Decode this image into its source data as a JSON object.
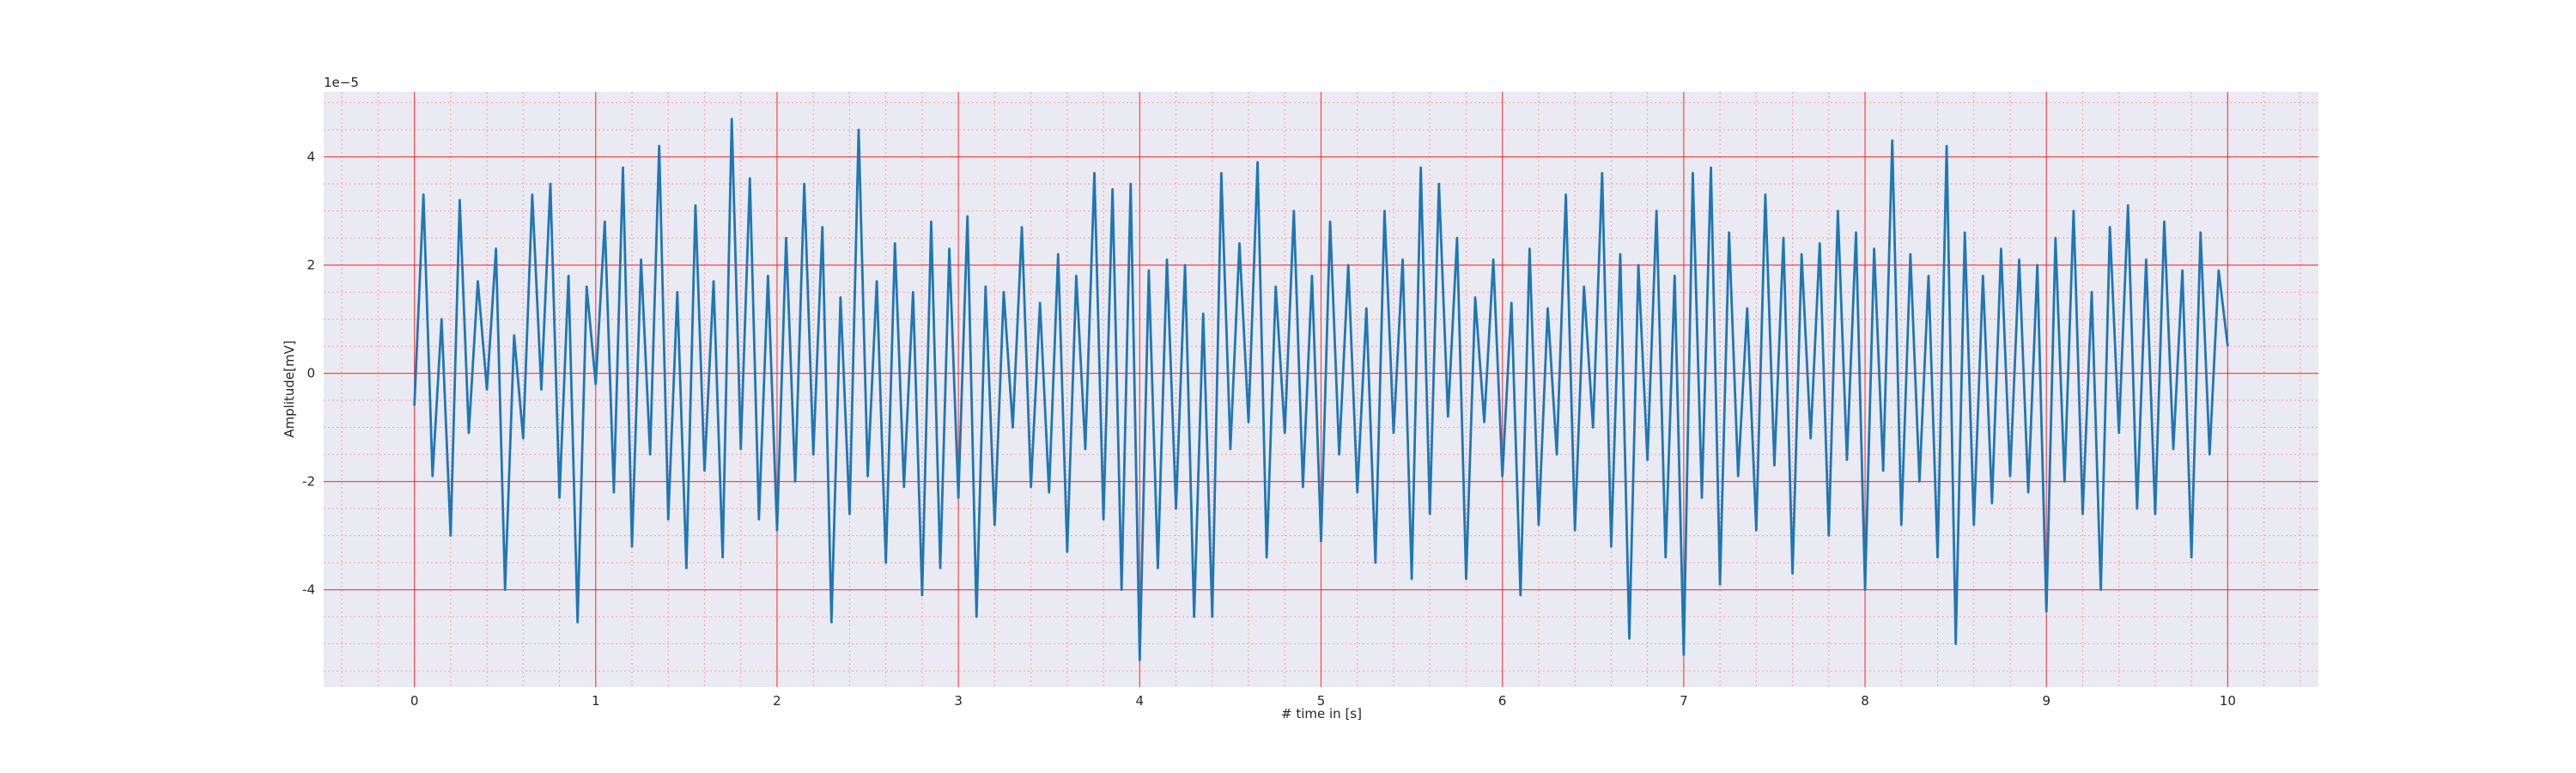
{
  "chart_data": {
    "type": "line",
    "x_label": "# time in [s]",
    "y_label": "Amplitude[mV]",
    "y_offset_text": "1e−5",
    "xlim": [
      -0.5,
      10.5
    ],
    "ylim": [
      -5.8,
      5.2
    ],
    "xticks": [
      0,
      1,
      2,
      3,
      4,
      5,
      6,
      7,
      8,
      9,
      10
    ],
    "yticks": [
      -4,
      -2,
      0,
      2,
      4
    ],
    "xminorticks": [
      -0.4,
      -0.2,
      0.2,
      0.4,
      0.6,
      0.8,
      1.2,
      1.4,
      1.6,
      1.8,
      2.2,
      2.4,
      2.6,
      2.8,
      3.2,
      3.4,
      3.6,
      3.8,
      4.2,
      4.4,
      4.6,
      4.8,
      5.2,
      5.4,
      5.6,
      5.8,
      6.2,
      6.4,
      6.6,
      6.8,
      7.2,
      7.4,
      7.6,
      7.8,
      8.2,
      8.4,
      8.6,
      8.8,
      9.2,
      9.4,
      9.6,
      9.8,
      10.2,
      10.4
    ],
    "yminorticks": [
      -5.5,
      -5,
      -4.5,
      -3.5,
      -3,
      -2.5,
      -1.5,
      -1,
      -0.5,
      0.5,
      1,
      1.5,
      2.5,
      3,
      3.5,
      4.5,
      5
    ],
    "grid": true,
    "grid_color": "#ff0000",
    "minor_grid_color": "#ff9aa8",
    "background": "#eaeaf2",
    "x": [
      0,
      0.05,
      0.1,
      0.15,
      0.2,
      0.25,
      0.3,
      0.35,
      0.4,
      0.45,
      0.5,
      0.55,
      0.6,
      0.65,
      0.7,
      0.75,
      0.8,
      0.85,
      0.9,
      0.95,
      1,
      1.05,
      1.1,
      1.15,
      1.2,
      1.25,
      1.3,
      1.35,
      1.4,
      1.45,
      1.5,
      1.55,
      1.6,
      1.65,
      1.7,
      1.75,
      1.8,
      1.85,
      1.9,
      1.95,
      2,
      2.05,
      2.1,
      2.15,
      2.2,
      2.25,
      2.3,
      2.35,
      2.4,
      2.45,
      2.5,
      2.55,
      2.6,
      2.65,
      2.7,
      2.75,
      2.8,
      2.85,
      2.9,
      2.95,
      3,
      3.05,
      3.1,
      3.15,
      3.2,
      3.25,
      3.3,
      3.35,
      3.4,
      3.45,
      3.5,
      3.55,
      3.6,
      3.65,
      3.7,
      3.75,
      3.8,
      3.85,
      3.9,
      3.95,
      4,
      4.05,
      4.1,
      4.15,
      4.2,
      4.25,
      4.3,
      4.35,
      4.4,
      4.45,
      4.5,
      4.55,
      4.6,
      4.65,
      4.7,
      4.75,
      4.8,
      4.85,
      4.9,
      4.95,
      5,
      5.05,
      5.1,
      5.15,
      5.2,
      5.25,
      5.3,
      5.35,
      5.4,
      5.45,
      5.5,
      5.55,
      5.6,
      5.65,
      5.7,
      5.75,
      5.8,
      5.85,
      5.9,
      5.95,
      6,
      6.05,
      6.1,
      6.15,
      6.2,
      6.25,
      6.3,
      6.35,
      6.4,
      6.45,
      6.5,
      6.55,
      6.6,
      6.65,
      6.7,
      6.75,
      6.8,
      6.85,
      6.9,
      6.95,
      7,
      7.05,
      7.1,
      7.15,
      7.2,
      7.25,
      7.3,
      7.35,
      7.4,
      7.45,
      7.5,
      7.55,
      7.6,
      7.65,
      7.7,
      7.75,
      7.8,
      7.85,
      7.9,
      7.95,
      8,
      8.05,
      8.1,
      8.15,
      8.2,
      8.25,
      8.3,
      8.35,
      8.4,
      8.45,
      8.5,
      8.55,
      8.6,
      8.65,
      8.7,
      8.75,
      8.8,
      8.85,
      8.9,
      8.95,
      9,
      9.05,
      9.1,
      9.15,
      9.2,
      9.25,
      9.3,
      9.35,
      9.4,
      9.45,
      9.5,
      9.55,
      9.6,
      9.65,
      9.7,
      9.75,
      9.8,
      9.85,
      9.9,
      9.95,
      10
    ],
    "series": [
      {
        "color": "#1f77b4",
        "values": [
          -0.6,
          3.3,
          -1.9,
          1.0,
          -3.0,
          3.2,
          -1.1,
          1.7,
          -0.3,
          2.3,
          -4.0,
          0.7,
          -1.2,
          3.3,
          -0.3,
          3.5,
          -2.3,
          1.8,
          -4.6,
          1.6,
          -0.2,
          2.8,
          -2.2,
          3.8,
          -3.2,
          2.1,
          -1.5,
          4.2,
          -2.7,
          1.5,
          -3.6,
          3.1,
          -1.8,
          1.7,
          -3.4,
          4.7,
          -1.4,
          3.6,
          -2.7,
          1.8,
          -2.9,
          2.5,
          -2.0,
          3.5,
          -1.5,
          2.7,
          -4.6,
          1.4,
          -2.6,
          4.5,
          -1.9,
          1.7,
          -3.5,
          2.4,
          -2.1,
          1.5,
          -4.1,
          2.8,
          -3.6,
          2.3,
          -2.3,
          2.9,
          -4.5,
          1.6,
          -2.8,
          1.5,
          -1.0,
          2.7,
          -2.1,
          1.3,
          -2.2,
          2.2,
          -3.3,
          1.8,
          -1.4,
          3.7,
          -2.7,
          3.4,
          -4.0,
          3.5,
          -5.3,
          1.9,
          -3.6,
          2.1,
          -2.5,
          2.0,
          -4.5,
          1.1,
          -4.5,
          3.7,
          -1.4,
          2.4,
          -0.9,
          3.9,
          -3.4,
          1.6,
          -1.1,
          3.0,
          -2.1,
          1.8,
          -3.1,
          2.8,
          -1.5,
          2.0,
          -2.2,
          1.2,
          -3.5,
          3.0,
          -1.1,
          2.1,
          -3.8,
          3.8,
          -2.6,
          3.5,
          -0.8,
          2.5,
          -3.8,
          1.4,
          -0.9,
          2.1,
          -1.9,
          1.3,
          -4.1,
          2.3,
          -2.8,
          1.2,
          -1.5,
          3.3,
          -2.9,
          1.6,
          -1.0,
          3.7,
          -3.2,
          2.2,
          -4.9,
          2.0,
          -1.6,
          3.0,
          -3.4,
          1.8,
          -5.2,
          3.7,
          -2.3,
          3.8,
          -3.9,
          2.6,
          -1.9,
          1.2,
          -2.9,
          3.3,
          -1.7,
          2.5,
          -3.7,
          2.2,
          -1.2,
          2.4,
          -3.0,
          3.0,
          -1.6,
          2.6,
          -4.0,
          2.3,
          -1.8,
          4.3,
          -2.8,
          2.2,
          -2.0,
          1.8,
          -3.4,
          4.2,
          -5.0,
          2.6,
          -2.8,
          1.8,
          -2.4,
          2.3,
          -1.9,
          2.1,
          -2.2,
          2.0,
          -4.4,
          2.5,
          -2.0,
          3.0,
          -2.6,
          1.5,
          -4.0,
          2.7,
          -1.1,
          3.1,
          -2.5,
          2.1,
          -2.6,
          2.8,
          -1.4,
          1.9,
          -3.4,
          2.6,
          -1.5,
          1.9,
          0.5
        ]
      }
    ]
  }
}
